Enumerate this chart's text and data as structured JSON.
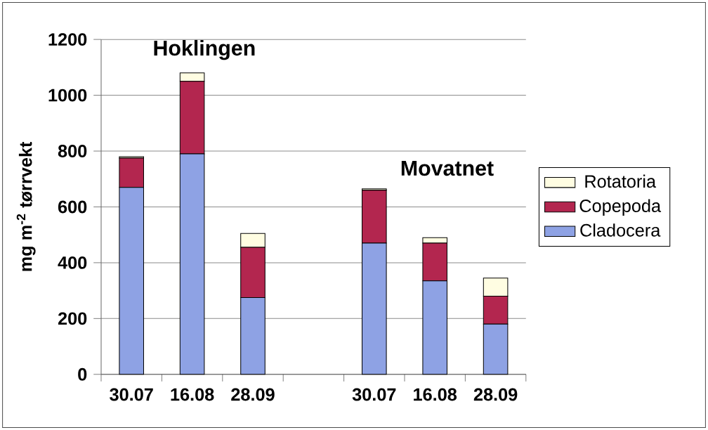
{
  "chart_data": {
    "type": "bar",
    "stacked": true,
    "categories": [
      "30.07",
      "16.08",
      "28.09",
      null,
      "30.07",
      "16.08",
      "28.09"
    ],
    "series": [
      {
        "name": "Cladocera",
        "color": "#8ea2e4",
        "values": [
          670,
          790,
          275,
          null,
          470,
          335,
          180
        ]
      },
      {
        "name": "Copepoda",
        "color": "#b3264f",
        "values": [
          105,
          260,
          180,
          null,
          190,
          135,
          100
        ]
      },
      {
        "name": "Rotatoria",
        "color": "#fffde2",
        "values": [
          5,
          30,
          50,
          null,
          5,
          20,
          65
        ]
      }
    ],
    "ylabel": "mg m$^{-2}$ tørrvekt",
    "annotations": [
      "Hoklingen",
      "Movatnet"
    ],
    "ylim": [
      0,
      1200
    ],
    "yticks": [
      0,
      200,
      400,
      600,
      800,
      1000,
      1200
    ],
    "grid": "y",
    "legend": "right"
  }
}
